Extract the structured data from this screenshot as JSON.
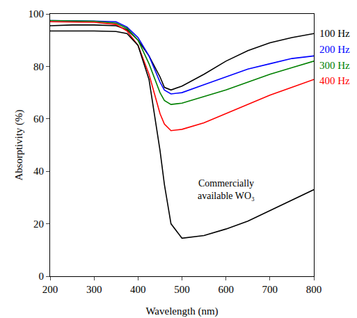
{
  "chart_data": {
    "type": "line",
    "x_label": "Wavelength (nm)",
    "y_label": "Absorptivity (%)",
    "x": [
      200,
      250,
      300,
      350,
      375,
      400,
      425,
      450,
      460,
      475,
      500,
      550,
      600,
      650,
      700,
      750,
      800
    ],
    "xlim": [
      200,
      800
    ],
    "xticks": [
      200,
      300,
      400,
      500,
      600,
      700,
      800
    ],
    "ylim": [
      0,
      100
    ],
    "yticks": [
      0,
      20,
      40,
      60,
      80,
      100
    ],
    "grid": false,
    "series": [
      {
        "name": "100 Hz",
        "color": "#000000",
        "values": [
          95.5,
          95.8,
          95.8,
          95.5,
          94,
          90,
          84,
          76,
          72,
          71,
          72.5,
          77,
          82,
          86,
          89,
          91,
          92.5
        ]
      },
      {
        "name": "200 Hz",
        "color": "#0000ff",
        "values": [
          97.5,
          97.5,
          97.3,
          97,
          95,
          91,
          84,
          74,
          71,
          69.5,
          70,
          73,
          76,
          79,
          81,
          83,
          84
        ]
      },
      {
        "name": "300 Hz",
        "color": "#008000",
        "values": [
          97.5,
          97.4,
          97.2,
          96.5,
          94.5,
          90,
          81,
          70,
          67,
          65.5,
          66,
          68.5,
          71,
          74,
          77,
          79.5,
          82
        ]
      },
      {
        "name": "400 Hz",
        "color": "#ff0000",
        "values": [
          97,
          97,
          96.8,
          96,
          93.5,
          88,
          77,
          62,
          58,
          55.5,
          56,
          58.5,
          62,
          65.5,
          69,
          72,
          75
        ]
      },
      {
        "name": "Commercially available WO₃",
        "color": "#000000",
        "values": [
          93.5,
          93.5,
          93.5,
          93.3,
          92.5,
          88,
          75,
          48,
          35,
          20,
          14.5,
          15.5,
          18,
          21,
          25,
          29,
          33
        ]
      }
    ]
  }
}
